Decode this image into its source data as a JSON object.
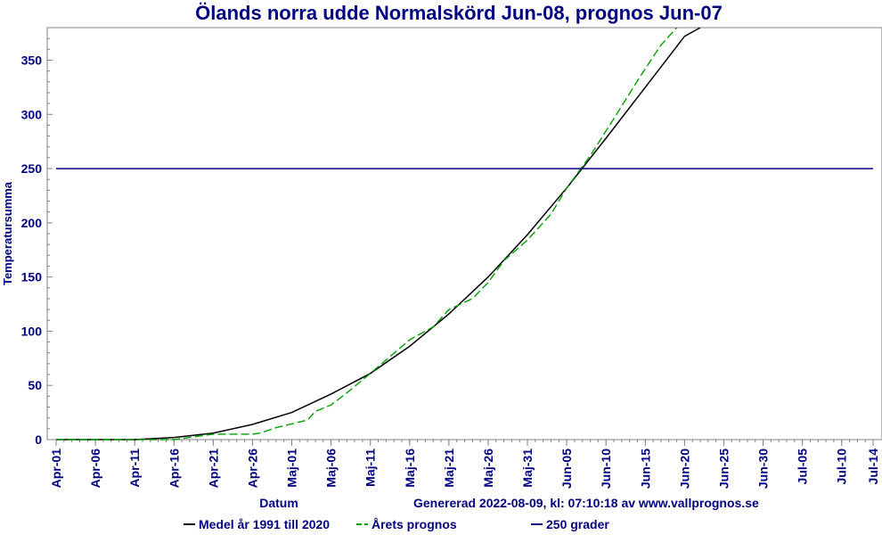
{
  "chart_data": {
    "type": "line",
    "title": "Ölands norra udde Normalskörd Jun-08, prognos Jun-07",
    "xlabel": "Datum",
    "ylabel": "Temperatursumma",
    "generated_text": "Genererad 2022-08-09, kl: 07:10:18 av www.vallprognos.se",
    "x_start": "Apr-01",
    "x_end": "Jul-14",
    "ylim": [
      0,
      380
    ],
    "y_ticks": [
      0,
      50,
      100,
      150,
      200,
      250,
      300,
      350
    ],
    "x_tick_labels": [
      "Apr-01",
      "Apr-06",
      "Apr-11",
      "Apr-16",
      "Apr-21",
      "Apr-26",
      "Maj-01",
      "Maj-06",
      "Maj-11",
      "Maj-16",
      "Maj-21",
      "Maj-26",
      "Maj-31",
      "Jun-05",
      "Jun-10",
      "Jun-15",
      "Jun-20",
      "Jun-25",
      "Jun-30",
      "Jul-05",
      "Jul-10",
      "Jul-14"
    ],
    "x_tick_dates": [
      "Apr-01",
      "Apr-06",
      "Apr-11",
      "Apr-16",
      "Apr-21",
      "Apr-26",
      "Maj-01",
      "Maj-06",
      "Maj-11",
      "Maj-16",
      "Maj-21",
      "Maj-26",
      "Maj-31",
      "Jun-05",
      "Jun-10",
      "Jun-15",
      "Jun-20",
      "Jun-25",
      "Jun-30",
      "Jul-05",
      "Jul-10",
      "Jul-14"
    ],
    "grid": false,
    "legend_position": "bottom",
    "colors": {
      "title": "#000080",
      "axis": "#000080",
      "frame": "#808080"
    },
    "series": [
      {
        "name": "Medel år 1991 till 2020",
        "color": "#000000",
        "style": "solid",
        "x": [
          "Apr-01",
          "Apr-06",
          "Apr-11",
          "Apr-16",
          "Apr-21",
          "Apr-26",
          "Maj-01",
          "Maj-06",
          "Maj-11",
          "Maj-16",
          "Maj-21",
          "Maj-26",
          "Maj-31",
          "Jun-05",
          "Jun-10",
          "Jun-15",
          "Jun-20",
          "Jun-22"
        ],
        "y": [
          0,
          0,
          0,
          2,
          6,
          14,
          25,
          42,
          61,
          86,
          116,
          150,
          189,
          232,
          278,
          325,
          372,
          380
        ]
      },
      {
        "name": "Årets prognos",
        "color": "#00a000",
        "style": "dashed",
        "x": [
          "Apr-01",
          "Apr-06",
          "Apr-11",
          "Apr-16",
          "Apr-21",
          "Apr-26",
          "Apr-27",
          "Apr-29",
          "Maj-03",
          "Maj-04",
          "Maj-06",
          "Maj-08",
          "Maj-11",
          "Maj-16",
          "Maj-19",
          "Maj-21",
          "Maj-24",
          "Maj-26",
          "Maj-28",
          "Maj-31",
          "Jun-03",
          "Jun-05",
          "Jun-08",
          "Jun-11",
          "Jun-14",
          "Jun-17",
          "Jun-19"
        ],
        "y": [
          0,
          0,
          0,
          0,
          5,
          5,
          6,
          11,
          18,
          26,
          32,
          43,
          61,
          92,
          104,
          120,
          130,
          145,
          165,
          184,
          208,
          232,
          262,
          296,
          331,
          364,
          380
        ]
      },
      {
        "name": "250 grader",
        "color": "#000080",
        "style": "solid",
        "x": [
          "Apr-01",
          "Jul-14"
        ],
        "y": [
          250,
          250
        ]
      }
    ]
  }
}
